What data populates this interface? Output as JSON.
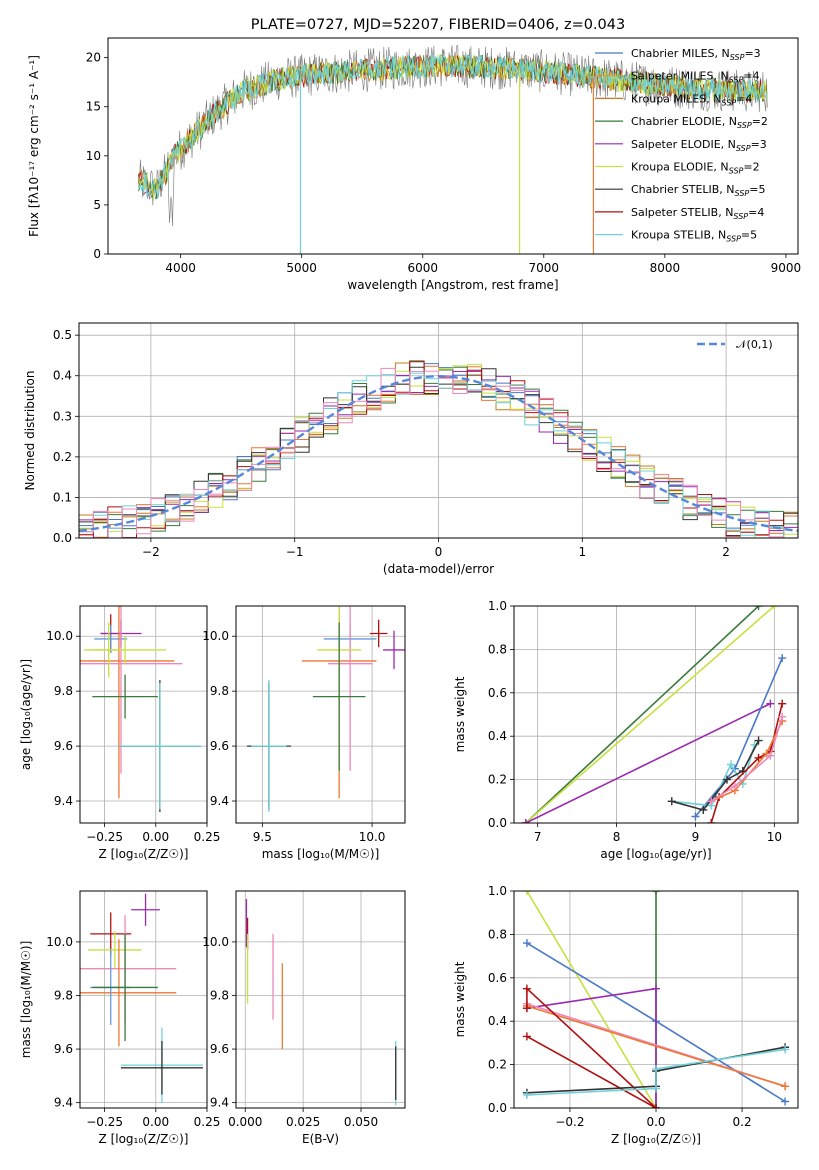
{
  "title": "PLATE=0727, MJD=52207, FIBERID=0406, z=0.043",
  "colors": {
    "chabrier_miles": "#4a78c8",
    "salpeter_miles": "#f28c28",
    "kroupa_miles": "#c8781e",
    "chabrier_elodie": "#3a7a3a",
    "salpeter_elodie": "#9a2ab0",
    "kroupa_elodie": "#c8e040",
    "chabrier_stelib": "#333333",
    "salpeter_stelib": "#b01010",
    "kroupa_stelib": "#6ed0d8",
    "normal": "#5588dd",
    "pink": "#ee88bb",
    "orange2": "#ee7733",
    "blue2": "#6699dd",
    "grid": "#b0b0b0"
  },
  "chart_data": [
    {
      "id": "spectrum",
      "type": "line",
      "title": "PLATE=0727, MJD=52207, FIBERID=0406, z=0.043",
      "xlabel": "wavelength [Angstrom, rest frame]",
      "ylabel": "Flux [fλ10⁻¹⁷ erg cm⁻² s⁻¹ A⁻¹]",
      "xlim": [
        3400,
        9100
      ],
      "ylim": [
        0,
        22
      ],
      "xticks": [
        "4000",
        "5000",
        "6000",
        "7000",
        "8000",
        "9000"
      ],
      "yticks": [
        "0",
        "5",
        "10",
        "15",
        "20"
      ],
      "grid": false,
      "legend_position": "upper-right",
      "legend": [
        "Chabrier MILES, NSSP=3",
        "Salpeter MILES, NSSP=4",
        "Kroupa MILES, NSSP=4",
        "Chabrier ELODIE, NSSP=2",
        "Salpeter ELODIE, NSSP=3",
        "Kroupa ELODIE, NSSP=2",
        "Chabrier STELIB, NSSP=5",
        "Salpeter STELIB, NSSP=4",
        "Kroupa STELIB, NSSP=5"
      ],
      "continuum_x": [
        3650,
        3800,
        3950,
        4100,
        4300,
        4500,
        4800,
        5100,
        5400,
        5800,
        6200,
        6600,
        7000,
        7400,
        7800,
        8200,
        8600,
        8850
      ],
      "continuum_y": [
        7.5,
        6.5,
        10,
        12,
        14.5,
        16.5,
        17.8,
        18.3,
        18.6,
        19.0,
        19.2,
        19.0,
        18.6,
        18.0,
        17.4,
        16.9,
        16.6,
        16.6
      ]
    },
    {
      "id": "residuals",
      "type": "histogram",
      "xlabel": "(data-model)/error",
      "ylabel": "Normed distribution",
      "xlim": [
        -2.5,
        2.5
      ],
      "ylim": [
        0,
        0.53
      ],
      "xticks": [
        "−2",
        "−1",
        "0",
        "1",
        "2"
      ],
      "yticks": [
        "0.0",
        "0.1",
        "0.2",
        "0.3",
        "0.4",
        "0.5"
      ],
      "grid": true,
      "legend": [
        "𝒩(0,1)"
      ],
      "legend_position": "upper-right",
      "bin_width": 0.1,
      "bin_start": -2.5
    },
    {
      "id": "age_vs_Z",
      "type": "errorbar",
      "xlabel": "Z [log₁₀(Z/Z☉)]",
      "ylabel": "age  [log₁₀(age/yr)]",
      "xlim": [
        -0.37,
        0.25
      ],
      "ylim": [
        9.32,
        10.11
      ],
      "xticks": [
        "−0.25",
        "0.00",
        "0.25"
      ],
      "yticks": [
        "9.4",
        "9.6",
        "9.8",
        "10.0"
      ],
      "points": [
        {
          "x": -0.22,
          "y": 10.01,
          "xerr": 0.05,
          "yerr": 0.07,
          "c": "salpeter_stelib"
        },
        {
          "x": -0.22,
          "y": 9.99,
          "xerr": 0.08,
          "yerr": 0.05,
          "c": "blue2"
        },
        {
          "x": -0.17,
          "y": 10.01,
          "xerr": 0.1,
          "yerr": 0.05,
          "c": "salpeter_elodie"
        },
        {
          "x": -0.18,
          "y": 9.91,
          "xerr": 0.27,
          "yerr": 0.5,
          "c": "orange2"
        },
        {
          "x": -0.17,
          "y": 9.9,
          "xerr": 0.3,
          "yerr": 0.4,
          "c": "pink"
        },
        {
          "x": -0.23,
          "y": 9.95,
          "xerr": 0.07,
          "yerr": 0.1,
          "c": "kroupa_elodie"
        },
        {
          "x": -0.15,
          "y": 9.95,
          "xerr": 0.2,
          "yerr": 0.05,
          "c": "kroupa_elodie"
        },
        {
          "x": -0.15,
          "y": 9.78,
          "xerr": 0.16,
          "yerr": 0.08,
          "c": "chabrier_elodie"
        },
        {
          "x": 0.02,
          "y": 9.6,
          "xerr": 0.2,
          "yerr": 0.24,
          "c": "chabrier_stelib"
        },
        {
          "x": 0.02,
          "y": 9.6,
          "xerr": 0.2,
          "yerr": 0.23,
          "c": "kroupa_stelib"
        }
      ]
    },
    {
      "id": "age_vs_mass",
      "type": "errorbar",
      "xlabel": "mass [log₁₀(M/M☉)]",
      "ylabel": "",
      "xlim": [
        9.38,
        10.15
      ],
      "ylim": [
        9.32,
        10.11
      ],
      "xticks": [
        "9.5",
        "10.0"
      ],
      "yticks": [
        "9.4",
        "9.6",
        "9.8",
        "10.0"
      ],
      "points": [
        {
          "x": 10.03,
          "y": 10.01,
          "xerr": 0.04,
          "yerr": 0.05,
          "c": "salpeter_stelib"
        },
        {
          "x": 10.1,
          "y": 9.95,
          "xerr": 0.05,
          "yerr": 0.07,
          "c": "salpeter_elodie"
        },
        {
          "x": 9.9,
          "y": 9.99,
          "xerr": 0.12,
          "yerr": 0.05,
          "c": "blue2"
        },
        {
          "x": 9.85,
          "y": 9.91,
          "xerr": 0.17,
          "yerr": 0.5,
          "c": "orange2"
        },
        {
          "x": 9.9,
          "y": 9.9,
          "xerr": 0.1,
          "yerr": 0.39,
          "c": "pink"
        },
        {
          "x": 9.85,
          "y": 9.95,
          "xerr": 0.1,
          "yerr": 0.17,
          "c": "kroupa_elodie"
        },
        {
          "x": 9.85,
          "y": 9.78,
          "xerr": 0.12,
          "yerr": 0.27,
          "c": "chabrier_elodie"
        },
        {
          "x": 9.53,
          "y": 9.6,
          "xerr": 0.1,
          "yerr": 0.23,
          "c": "chabrier_stelib"
        },
        {
          "x": 9.53,
          "y": 9.6,
          "xerr": 0.08,
          "yerr": 0.24,
          "c": "kroupa_stelib"
        }
      ]
    },
    {
      "id": "mass_weight_vs_age",
      "type": "line",
      "xlabel": "age  [log₁₀(age/yr)]",
      "ylabel": "mass weight",
      "xlim": [
        6.7,
        10.3
      ],
      "ylim": [
        0,
        1
      ],
      "xticks": [
        "7",
        "8",
        "9",
        "10"
      ],
      "yticks": [
        "0.0",
        "0.2",
        "0.4",
        "0.6",
        "0.8",
        "1.0"
      ],
      "grid": true,
      "series": [
        {
          "c": "chabrier_elodie",
          "x": [
            6.85,
            9.8
          ],
          "y": [
            0.0,
            1.0
          ]
        },
        {
          "c": "kroupa_elodie",
          "x": [
            6.85,
            10.0
          ],
          "y": [
            0.0,
            1.0
          ]
        },
        {
          "c": "salpeter_elodie",
          "x": [
            6.85,
            9.95
          ],
          "y": [
            0.0,
            0.55
          ]
        },
        {
          "c": "chabrier_miles",
          "x": [
            9.0,
            9.5,
            10.1
          ],
          "y": [
            0.03,
            0.25,
            0.76
          ]
        },
        {
          "c": "kroupa_stelib",
          "x": [
            8.7,
            9.2,
            9.45,
            9.6,
            9.75
          ],
          "y": [
            0.1,
            0.08,
            0.27,
            0.18,
            0.36
          ]
        },
        {
          "c": "chabrier_stelib",
          "x": [
            8.7,
            9.1,
            9.4,
            9.6,
            9.8
          ],
          "y": [
            0.1,
            0.06,
            0.2,
            0.24,
            0.38
          ]
        },
        {
          "c": "salpeter_stelib",
          "x": [
            9.2,
            9.3,
            9.8,
            9.95,
            10.1
          ],
          "y": [
            0.0,
            0.12,
            0.3,
            0.33,
            0.55
          ]
        },
        {
          "c": "orange2",
          "x": [
            9.2,
            9.5,
            9.9,
            10.1
          ],
          "y": [
            0.1,
            0.15,
            0.32,
            0.47
          ]
        },
        {
          "c": "pink",
          "x": [
            9.2,
            9.5,
            9.95,
            10.1
          ],
          "y": [
            0.1,
            0.17,
            0.31,
            0.49
          ]
        }
      ]
    },
    {
      "id": "mass_vs_Z",
      "type": "errorbar",
      "xlabel": "Z [log₁₀(Z/Z☉)]",
      "ylabel": "mass [log₁₀(M/M☉)]",
      "xlim": [
        -0.37,
        0.25
      ],
      "ylim": [
        9.38,
        10.19
      ],
      "xticks": [
        "−0.25",
        "0.00",
        "0.25"
      ],
      "yticks": [
        "9.4",
        "9.6",
        "9.8",
        "10.0"
      ],
      "points": [
        {
          "x": -0.05,
          "y": 10.12,
          "xerr": 0.07,
          "yerr": 0.06,
          "c": "salpeter_elodie"
        },
        {
          "x": -0.22,
          "y": 10.03,
          "xerr": 0.1,
          "yerr": 0.08,
          "c": "salpeter_stelib"
        },
        {
          "x": -0.2,
          "y": 9.97,
          "xerr": 0.13,
          "yerr": 0.07,
          "c": "kroupa_elodie"
        },
        {
          "x": -0.15,
          "y": 9.9,
          "xerr": 0.25,
          "yerr": 0.2,
          "c": "pink"
        },
        {
          "x": -0.18,
          "y": 9.81,
          "xerr": 0.28,
          "yerr": 0.2,
          "c": "orange2"
        },
        {
          "x": -0.22,
          "y": 9.83,
          "xerr": 0.1,
          "yerr": 0.14,
          "c": "blue2"
        },
        {
          "x": -0.15,
          "y": 9.83,
          "xerr": 0.16,
          "yerr": 0.2,
          "c": "chabrier_elodie"
        },
        {
          "x": 0.03,
          "y": 9.54,
          "xerr": 0.2,
          "yerr": 0.14,
          "c": "kroupa_stelib"
        },
        {
          "x": 0.03,
          "y": 9.53,
          "xerr": 0.2,
          "yerr": 0.1,
          "c": "chabrier_stelib"
        }
      ]
    },
    {
      "id": "mass_vs_ebv",
      "type": "errorbar",
      "xlabel": "E(B-V)",
      "ylabel": "",
      "xlim": [
        -0.004,
        0.069
      ],
      "ylim": [
        9.38,
        10.19
      ],
      "xticks": [
        "0.000",
        "0.025",
        "0.050"
      ],
      "yticks": [
        "9.4",
        "9.6",
        "9.8",
        "10.0"
      ],
      "points": [
        {
          "x": 0.0005,
          "y": 10.07,
          "xerr": 0,
          "yerr": 0.09,
          "c": "salpeter_elodie"
        },
        {
          "x": 0.001,
          "y": 10.03,
          "xerr": 0,
          "yerr": 0.06,
          "c": "salpeter_stelib"
        },
        {
          "x": 0.001,
          "y": 9.9,
          "xerr": 0,
          "yerr": 0.13,
          "c": "kroupa_elodie"
        },
        {
          "x": 0.012,
          "y": 9.87,
          "xerr": 0,
          "yerr": 0.16,
          "c": "pink"
        },
        {
          "x": 0.016,
          "y": 9.76,
          "xerr": 0,
          "yerr": 0.16,
          "c": "orange2"
        },
        {
          "x": 0.065,
          "y": 9.51,
          "xerr": 0,
          "yerr": 0.12,
          "c": "kroupa_stelib"
        },
        {
          "x": 0.065,
          "y": 9.51,
          "xerr": 0,
          "yerr": 0.1,
          "c": "chabrier_stelib"
        }
      ]
    },
    {
      "id": "mass_weight_vs_Z",
      "type": "line",
      "xlabel": "Z [log₁₀(Z/Z☉)]",
      "ylabel": "mass weight",
      "xlim": [
        -0.33,
        0.33
      ],
      "ylim": [
        0,
        1
      ],
      "xticks": [
        "−0.2",
        "0.0",
        "0.2"
      ],
      "yticks": [
        "0.0",
        "0.2",
        "0.4",
        "0.6",
        "0.8",
        "1.0"
      ],
      "grid": true,
      "series": [
        {
          "c": "kroupa_elodie",
          "x": [
            -0.3,
            0.0
          ],
          "y": [
            1.0,
            0.0
          ]
        },
        {
          "c": "chabrier_elodie",
          "x": [
            0.0,
            0.0
          ],
          "y": [
            0.0,
            1.0
          ]
        },
        {
          "c": "chabrier_miles",
          "x": [
            -0.3,
            0.0,
            0.3
          ],
          "y": [
            0.76,
            0.4,
            0.03
          ]
        },
        {
          "c": "salpeter_elodie",
          "x": [
            -0.3,
            0.0,
            0.0
          ],
          "y": [
            0.46,
            0.55,
            0.0
          ]
        },
        {
          "c": "pink",
          "x": [
            -0.3,
            0.3
          ],
          "y": [
            0.48,
            0.1
          ]
        },
        {
          "c": "orange2",
          "x": [
            -0.3,
            0.3
          ],
          "y": [
            0.47,
            0.1
          ]
        },
        {
          "c": "salpeter_stelib",
          "x": [
            -0.3,
            0.0,
            -0.3,
            -0.3
          ],
          "y": [
            0.33,
            0.0,
            0.55,
            0.46
          ]
        },
        {
          "c": "chabrier_stelib",
          "x": [
            -0.3,
            0.0,
            0.0,
            0.3
          ],
          "y": [
            0.07,
            0.1,
            0.17,
            0.28
          ]
        },
        {
          "c": "kroupa_stelib",
          "x": [
            -0.3,
            0.0,
            0.0,
            0.3
          ],
          "y": [
            0.06,
            0.09,
            0.18,
            0.27
          ]
        }
      ]
    }
  ]
}
